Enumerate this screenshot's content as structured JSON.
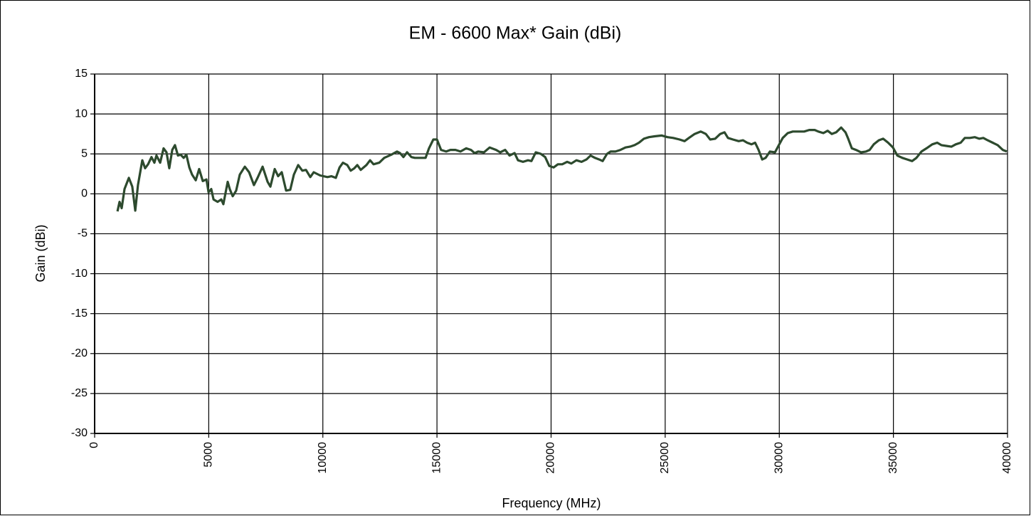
{
  "chart_data": {
    "type": "line",
    "title": "EM - 6600 Max* Gain (dBi)",
    "x_label": "Frequency (MHz)",
    "y_label": "Gain (dBi)",
    "xlim": [
      0,
      40000
    ],
    "xticks": [
      0,
      5000,
      10000,
      15000,
      20000,
      25000,
      30000,
      35000,
      40000
    ],
    "ylim": [
      -30,
      15
    ],
    "yticks": [
      -30,
      -25,
      -20,
      -15,
      -10,
      -5,
      0,
      5,
      10,
      15
    ],
    "grid": true,
    "x": [
      1000,
      1090,
      1185,
      1310,
      1500,
      1650,
      1780,
      1900,
      2090,
      2210,
      2340,
      2490,
      2620,
      2710,
      2870,
      3020,
      3150,
      3270,
      3400,
      3520,
      3650,
      3770,
      3900,
      4020,
      4150,
      4270,
      4430,
      4580,
      4740,
      4900,
      4990,
      5110,
      5210,
      5390,
      5550,
      5640,
      5830,
      5920,
      6050,
      6200,
      6360,
      6580,
      6770,
      6980,
      7140,
      7360,
      7580,
      7700,
      7890,
      8040,
      8200,
      8390,
      8570,
      8730,
      8920,
      9100,
      9260,
      9450,
      9600,
      9880,
      10200,
      10380,
      10570,
      10730,
      10880,
      11070,
      11220,
      11380,
      11510,
      11660,
      11910,
      12070,
      12220,
      12470,
      12690,
      13000,
      13250,
      13380,
      13530,
      13690,
      13880,
      14030,
      14250,
      14500,
      14650,
      14840,
      15000,
      15180,
      15400,
      15590,
      15810,
      16030,
      16280,
      16490,
      16650,
      16810,
      17060,
      17310,
      17590,
      17770,
      17990,
      18180,
      18400,
      18550,
      18770,
      18990,
      19140,
      19330,
      19550,
      19740,
      19920,
      20110,
      20300,
      20490,
      20700,
      20890,
      21110,
      21330,
      21550,
      21730,
      21920,
      22110,
      22260,
      22450,
      22610,
      22820,
      23040,
      23260,
      23450,
      23660,
      23850,
      24070,
      24290,
      24540,
      24850,
      25100,
      25350,
      25630,
      25850,
      26040,
      26290,
      26560,
      26780,
      26970,
      27190,
      27410,
      27600,
      27750,
      27970,
      28220,
      28410,
      28590,
      28780,
      28940,
      29090,
      29250,
      29400,
      29590,
      29810,
      29960,
      30150,
      30370,
      30590,
      30840,
      31090,
      31310,
      31550,
      31710,
      31930,
      32120,
      32300,
      32490,
      32710,
      32900,
      33020,
      33180,
      33360,
      33580,
      33800,
      33960,
      34140,
      34360,
      34550,
      34770,
      34980,
      35170,
      35390,
      35610,
      35820,
      36010,
      36230,
      36450,
      36700,
      36920,
      37100,
      37320,
      37540,
      37730,
      37950,
      38130,
      38350,
      38570,
      38760,
      38940,
      39130,
      39350,
      39570,
      39790,
      39970
    ],
    "series": [
      {
        "color": "#2d4a2e",
        "values": [
          -2.2,
          -1.0,
          -1.8,
          0.6,
          2.0,
          0.9,
          -2.1,
          1.1,
          4.2,
          3.2,
          3.7,
          4.6,
          3.9,
          4.8,
          3.9,
          5.7,
          5.2,
          3.2,
          5.5,
          6.1,
          4.8,
          4.9,
          4.5,
          4.9,
          3.3,
          2.4,
          1.7,
          3.1,
          1.6,
          1.8,
          0.2,
          0.6,
          -0.7,
          -1.0,
          -0.7,
          -1.3,
          1.5,
          0.6,
          -0.3,
          0.4,
          2.4,
          3.4,
          2.7,
          1.1,
          2.0,
          3.4,
          1.5,
          0.9,
          3.1,
          2.2,
          2.7,
          0.4,
          0.5,
          2.4,
          3.6,
          2.9,
          3.0,
          2.1,
          2.7,
          2.3,
          2.1,
          2.2,
          2.0,
          3.3,
          3.9,
          3.6,
          2.9,
          3.2,
          3.6,
          3.0,
          3.6,
          4.2,
          3.7,
          3.9,
          4.5,
          4.9,
          5.3,
          5.1,
          4.6,
          5.2,
          4.6,
          4.5,
          4.5,
          4.5,
          5.7,
          6.8,
          6.8,
          5.5,
          5.3,
          5.5,
          5.5,
          5.3,
          5.7,
          5.5,
          5.1,
          5.3,
          5.2,
          5.8,
          5.5,
          5.2,
          5.5,
          4.8,
          5.1,
          4.2,
          4.0,
          4.2,
          4.1,
          5.2,
          5.0,
          4.6,
          3.5,
          3.3,
          3.7,
          3.7,
          4.0,
          3.8,
          4.2,
          4.0,
          4.3,
          4.8,
          4.5,
          4.3,
          4.1,
          5.0,
          5.3,
          5.3,
          5.5,
          5.8,
          5.9,
          6.1,
          6.4,
          6.9,
          7.1,
          7.2,
          7.3,
          7.1,
          7.0,
          6.8,
          6.6,
          7.0,
          7.5,
          7.8,
          7.5,
          6.8,
          6.9,
          7.5,
          7.7,
          7.0,
          6.8,
          6.6,
          6.7,
          6.4,
          6.2,
          6.4,
          5.5,
          4.3,
          4.5,
          5.3,
          5.2,
          6.0,
          7.0,
          7.6,
          7.8,
          7.8,
          7.8,
          8.0,
          8.0,
          7.8,
          7.6,
          7.9,
          7.5,
          7.7,
          8.3,
          7.7,
          6.9,
          5.7,
          5.5,
          5.2,
          5.3,
          5.5,
          6.2,
          6.7,
          6.9,
          6.4,
          5.8,
          4.8,
          4.5,
          4.3,
          4.1,
          4.5,
          5.3,
          5.7,
          6.2,
          6.4,
          6.1,
          6.0,
          5.9,
          6.2,
          6.4,
          7.0,
          7.0,
          7.1,
          6.9,
          7.0,
          6.7,
          6.4,
          6.1,
          5.5,
          5.3
        ]
      }
    ]
  }
}
